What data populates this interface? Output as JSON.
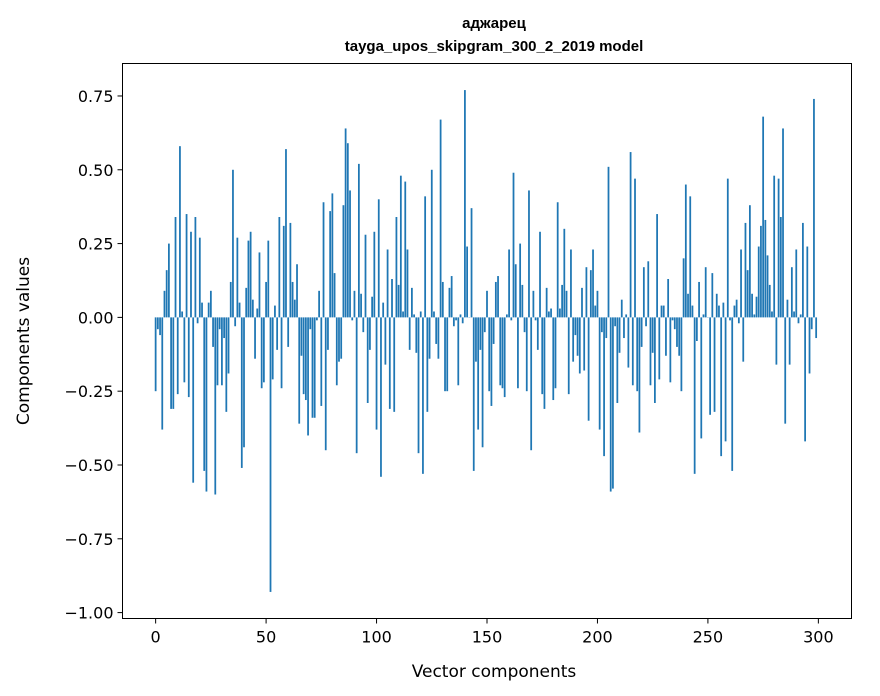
{
  "chart_data": {
    "type": "bar",
    "title": "аджарец",
    "subtitle": "tayga_upos_skipgram_300_2_2019 model",
    "xlabel": "Vector components",
    "ylabel": "Components values",
    "xlim": [
      -15,
      315
    ],
    "ylim": [
      -1.02,
      0.86
    ],
    "xticks": [
      0,
      50,
      100,
      150,
      200,
      250,
      300
    ],
    "xtick_labels": [
      "0",
      "50",
      "100",
      "150",
      "200",
      "250",
      "300"
    ],
    "yticks": [
      -1.0,
      -0.75,
      -0.5,
      -0.25,
      0.0,
      0.25,
      0.5,
      0.75
    ],
    "ytick_labels": [
      "−1.00",
      "−0.75",
      "−0.50",
      "−0.25",
      "0.00",
      "0.25",
      "0.50",
      "0.75"
    ],
    "grid": false,
    "bar_color": "#1f77b4",
    "values": [
      -0.25,
      -0.04,
      -0.06,
      -0.38,
      0.09,
      0.16,
      0.25,
      -0.31,
      -0.31,
      0.34,
      -0.26,
      0.58,
      0.02,
      -0.22,
      0.35,
      -0.27,
      0.29,
      -0.56,
      0.34,
      -0.02,
      0.27,
      0.05,
      -0.52,
      -0.59,
      0.05,
      0.09,
      -0.1,
      -0.6,
      -0.23,
      -0.04,
      -0.23,
      -0.07,
      -0.32,
      -0.19,
      0.12,
      0.5,
      -0.03,
      0.27,
      0.05,
      -0.51,
      -0.44,
      0.1,
      0.26,
      0.29,
      0.06,
      -0.14,
      0.03,
      0.22,
      -0.24,
      -0.22,
      0.12,
      0.26,
      -0.93,
      -0.21,
      0.04,
      -0.11,
      0.34,
      -0.24,
      0.31,
      0.57,
      -0.1,
      0.32,
      0.12,
      0.06,
      0.18,
      -0.36,
      -0.13,
      -0.26,
      -0.28,
      -0.4,
      -0.04,
      -0.34,
      -0.34,
      -0.01,
      0.09,
      -0.3,
      0.39,
      -0.45,
      -0.11,
      0.36,
      0.42,
      0.15,
      -0.23,
      -0.15,
      -0.14,
      0.38,
      0.64,
      0.59,
      0.43,
      -0.01,
      0.09,
      -0.46,
      0.52,
      0.08,
      -0.05,
      0.28,
      -0.29,
      -0.11,
      0.07,
      0.29,
      -0.38,
      0.4,
      -0.54,
      0.05,
      -0.16,
      0.23,
      -0.31,
      0.13,
      -0.32,
      0.34,
      0.11,
      0.48,
      0.02,
      0.46,
      0.23,
      -0.11,
      0.1,
      0.01,
      -0.12,
      -0.46,
      0.02,
      -0.53,
      0.41,
      -0.32,
      -0.14,
      0.5,
      0.02,
      -0.09,
      -0.14,
      0.67,
      0.12,
      -0.25,
      -0.25,
      0.1,
      0.14,
      -0.03,
      -0.01,
      -0.23,
      0.01,
      -0.02,
      0.77,
      0.24,
      0.0,
      0.37,
      -0.52,
      -0.15,
      -0.38,
      -0.11,
      -0.44,
      -0.05,
      0.09,
      -0.25,
      -0.3,
      -0.09,
      0.12,
      0.14,
      -0.23,
      -0.24,
      -0.27,
      0.01,
      0.23,
      -0.01,
      0.49,
      0.18,
      -0.24,
      0.25,
      0.11,
      -0.05,
      -0.25,
      0.43,
      -0.45,
      0.09,
      -0.01,
      -0.11,
      0.29,
      -0.26,
      -0.31,
      0.1,
      0.02,
      0.03,
      -0.28,
      -0.24,
      0.39,
      0.03,
      0.11,
      0.3,
      0.09,
      -0.26,
      0.23,
      -0.15,
      -0.06,
      -0.13,
      -0.19,
      0.1,
      -0.18,
      0.17,
      -0.35,
      0.16,
      0.23,
      0.04,
      0.09,
      -0.38,
      -0.05,
      -0.47,
      -0.07,
      0.51,
      -0.59,
      -0.58,
      -0.03,
      -0.29,
      -0.12,
      0.06,
      -0.07,
      0.01,
      -0.17,
      0.56,
      -0.23,
      0.47,
      -0.25,
      -0.39,
      -0.1,
      0.17,
      -0.03,
      0.19,
      -0.23,
      -0.12,
      -0.29,
      0.35,
      -0.21,
      0.04,
      0.04,
      -0.13,
      0.13,
      -0.22,
      -0.01,
      -0.04,
      -0.1,
      -0.13,
      -0.25,
      0.2,
      0.45,
      0.08,
      0.41,
      0.04,
      -0.53,
      -0.08,
      0.12,
      -0.41,
      0.01,
      0.17,
      0.0,
      -0.33,
      0.15,
      -0.32,
      0.08,
      0.04,
      -0.47,
      0.05,
      -0.42,
      0.47,
      -0.01,
      -0.52,
      0.04,
      0.06,
      -0.02,
      0.23,
      -0.15,
      0.32,
      0.16,
      0.38,
      0.08,
      0.01,
      0.07,
      0.24,
      0.31,
      0.68,
      0.33,
      0.21,
      0.11,
      0.02,
      0.48,
      -0.16,
      0.47,
      0.34,
      0.64,
      -0.36,
      0.06,
      -0.16,
      0.17,
      0.02,
      0.23,
      -0.02,
      0.01,
      0.32,
      -0.42,
      0.24,
      -0.19,
      -0.04,
      0.74,
      -0.07
    ]
  }
}
